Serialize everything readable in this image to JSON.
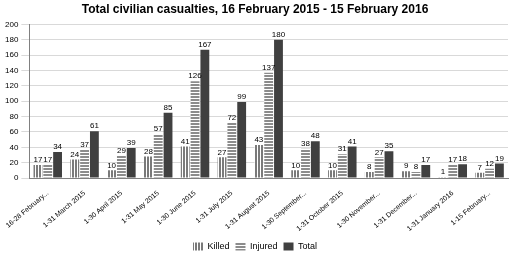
{
  "chart_data": {
    "type": "bar",
    "title": "Total civilian casualties, 16 February 2015 - 15 February 2016",
    "categories": [
      "16-28 February...",
      "1-31 March 2015",
      "1-30 April 2015",
      "1-31 May 2015",
      "1-30 June 2015",
      "1-31 July 2015",
      "1-31 August 2015",
      "1-30 September...",
      "1-31 October 2015",
      "1-30 November...",
      "1-31 December...",
      "1-31 January 2016",
      "1-15 February..."
    ],
    "series": [
      {
        "name": "Killed",
        "color": "#7a7a7a",
        "values": [
          17,
          24,
          10,
          28,
          41,
          27,
          43,
          10,
          10,
          8,
          9,
          1,
          7
        ]
      },
      {
        "name": "Injured",
        "color": "#8c8c8c",
        "values": [
          17,
          37,
          29,
          57,
          126,
          72,
          137,
          38,
          31,
          27,
          8,
          17,
          12
        ]
      },
      {
        "name": "Total",
        "color": "#404040",
        "values": [
          34,
          61,
          39,
          85,
          167,
          99,
          180,
          48,
          41,
          35,
          17,
          18,
          19
        ]
      }
    ],
    "ylim": [
      0,
      200
    ],
    "yticks": [
      0,
      20,
      40,
      60,
      80,
      100,
      120,
      140,
      160,
      180,
      200
    ],
    "grid": true,
    "legend": "bottom",
    "data_labels": true
  }
}
